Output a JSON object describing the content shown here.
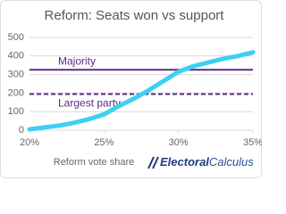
{
  "chart_data": {
    "type": "line",
    "title": "Reform: Seats won vs support",
    "x_label": "Reform vote share",
    "x": [
      20,
      21,
      22,
      23,
      24,
      25,
      26,
      27,
      28,
      29,
      30,
      31,
      32,
      33,
      34,
      35
    ],
    "series": [
      {
        "name": "Seats won",
        "color": "#3dd0f2",
        "values": [
          5,
          15,
          25,
          40,
          60,
          85,
          130,
          170,
          215,
          265,
          315,
          345,
          365,
          385,
          400,
          420
        ]
      }
    ],
    "xlim": [
      20,
      35
    ],
    "xticks": [
      {
        "value": 20,
        "label": "20%"
      },
      {
        "value": 25,
        "label": "25%"
      },
      {
        "value": 30,
        "label": "30%"
      },
      {
        "value": 35,
        "label": "35%"
      }
    ],
    "ylim": [
      0,
      500
    ],
    "yticks": [
      0,
      100,
      200,
      300,
      400,
      500
    ],
    "grid": true,
    "reference_lines": [
      {
        "name": "Majority",
        "value": 326,
        "color": "#5b2a86",
        "style": "solid"
      },
      {
        "name": "Largest party",
        "value": 195,
        "color": "#5b2a86",
        "style": "dashed"
      }
    ]
  },
  "logo": {
    "first": "Electoral",
    "second": "Calculus"
  }
}
